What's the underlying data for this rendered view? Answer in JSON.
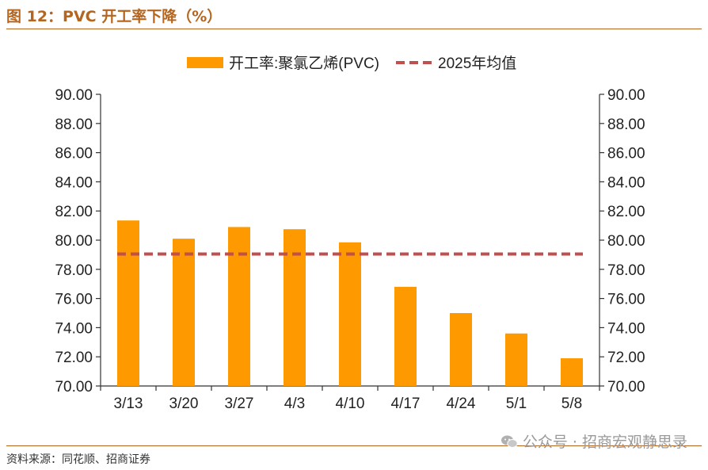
{
  "figure": {
    "title": "图 12：PVC 开工率下降（%）",
    "source": "资料来源：同花顺、招商证券",
    "watermark": "公众号 · 招商宏观静思录"
  },
  "chart_data": {
    "type": "bar",
    "title": "",
    "xlabel": "",
    "ylabel": "",
    "categories": [
      "3/13",
      "3/20",
      "3/27",
      "4/3",
      "4/10",
      "4/17",
      "4/24",
      "5/1",
      "5/8"
    ],
    "series": [
      {
        "name": "开工率:聚氯乙烯(PVC)",
        "type": "bar",
        "color": "#FF9900",
        "values": [
          81.35,
          80.1,
          80.9,
          80.75,
          79.85,
          76.8,
          75.0,
          73.6,
          71.9
        ]
      },
      {
        "name": "2025年均值",
        "type": "line",
        "style": "dashed",
        "color": "#C0504D",
        "values": [
          79.05,
          79.05,
          79.05,
          79.05,
          79.05,
          79.05,
          79.05,
          79.05,
          79.05
        ]
      }
    ],
    "ylim": [
      70,
      90
    ],
    "y_ticks": [
      "70.00",
      "72.00",
      "74.00",
      "76.00",
      "78.00",
      "80.00",
      "82.00",
      "84.00",
      "86.00",
      "88.00",
      "90.00"
    ],
    "y2_ticks": [
      "70.00",
      "72.00",
      "74.00",
      "76.00",
      "78.00",
      "80.00",
      "82.00",
      "84.00",
      "86.00",
      "88.00",
      "90.00"
    ],
    "legend_position": "top-center",
    "grid": false
  }
}
